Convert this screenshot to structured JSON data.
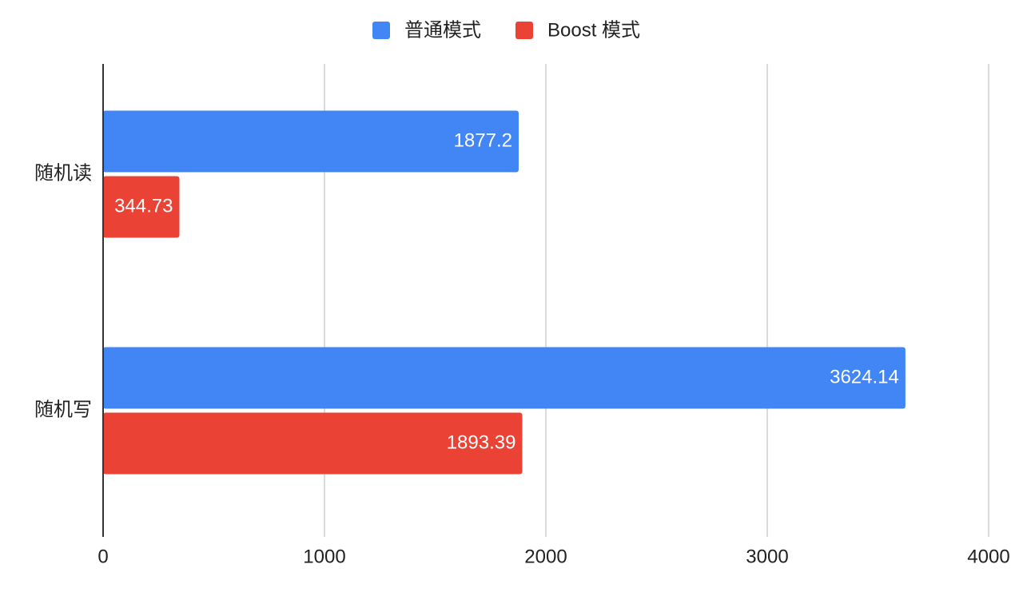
{
  "chart_data": {
    "type": "hbar",
    "categories": [
      "随机读",
      "随机写"
    ],
    "series": [
      {
        "name": "普通模式",
        "color": "#4285f4",
        "values": [
          1877.2,
          3624.14
        ]
      },
      {
        "name": "Boost 模式",
        "color": "#ea4335",
        "values": [
          344.73,
          1893.39
        ]
      }
    ],
    "xlim": [
      0,
      4000
    ],
    "xticks": [
      0,
      1000,
      2000,
      3000,
      4000
    ],
    "grid": true,
    "legend": "top"
  }
}
